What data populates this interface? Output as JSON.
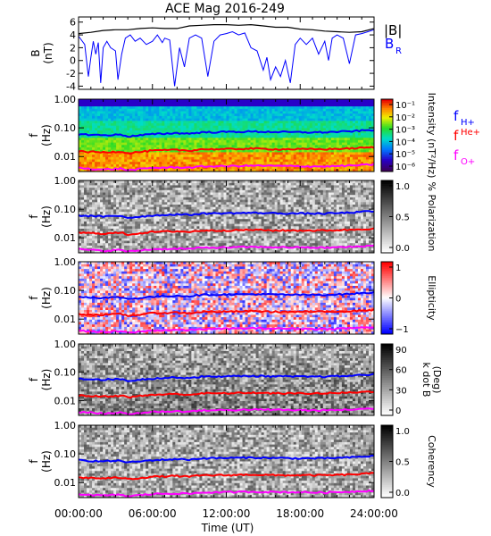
{
  "chart_data": {
    "title": "ACE Mag 2016-249",
    "xlabel": "Time (UT)",
    "x_ticks": [
      "00:00:00",
      "06:00:00",
      "12:00:00",
      "18:00:00",
      "24:00:00"
    ],
    "x_range_hours": [
      0,
      24
    ],
    "panels": [
      {
        "type": "line",
        "ylabel_top": "B",
        "ylabel_bottom": "(nT)",
        "ylim": [
          -4.5,
          6.8
        ],
        "y_ticks": [
          "6",
          "4",
          "2",
          "0",
          "-2",
          "-4"
        ],
        "y_tick_values": [
          6,
          4,
          2,
          0,
          -2,
          -4
        ],
        "series": [
          {
            "name": "|B|",
            "color": "#000000",
            "x": [
              0,
              1,
              2,
              3,
              4,
              5,
              6,
              7,
              8,
              9,
              10,
              11,
              12,
              13,
              14,
              15,
              16,
              17,
              18,
              19,
              20,
              21,
              22,
              23,
              24
            ],
            "y": [
              4.2,
              4.4,
              4.7,
              4.8,
              4.8,
              5.0,
              5.1,
              5.0,
              5.0,
              5.4,
              5.5,
              5.6,
              5.6,
              5.5,
              5.6,
              5.4,
              5.2,
              5.2,
              4.9,
              4.8,
              4.6,
              4.5,
              4.4,
              4.5,
              5.0
            ]
          },
          {
            "name": "B",
            "subscript": "R",
            "color": "#0000ff",
            "x": [
              0,
              0.5,
              0.8,
              1.0,
              1.2,
              1.4,
              1.6,
              1.8,
              2.0,
              2.3,
              2.6,
              3.0,
              3.2,
              3.5,
              3.8,
              4.2,
              4.6,
              5.0,
              5.5,
              6.0,
              6.4,
              6.8,
              7.0,
              7.4,
              7.8,
              8.2,
              8.6,
              9.0,
              9.5,
              10.0,
              10.5,
              11.0,
              11.5,
              12.0,
              12.5,
              13.0,
              13.5,
              14.0,
              14.5,
              15.0,
              15.3,
              15.6,
              16.0,
              16.4,
              16.8,
              17.2,
              17.6,
              18.0,
              18.5,
              19.0,
              19.5,
              20.0,
              20.3,
              20.6,
              21.0,
              21.5,
              22.0,
              22.5,
              23.0,
              23.5,
              24.0
            ],
            "y": [
              3.8,
              2.5,
              -2.5,
              0.5,
              3.0,
              1.0,
              2.8,
              -3.5,
              2.0,
              3.0,
              2.0,
              1.5,
              -3.0,
              1.0,
              3.5,
              4.0,
              3.0,
              3.5,
              2.5,
              3.0,
              4.0,
              2.8,
              3.5,
              3.2,
              -4.0,
              2.0,
              -1.0,
              3.5,
              4.0,
              3.5,
              -2.5,
              3.0,
              4.0,
              4.2,
              4.5,
              4.0,
              4.3,
              2.0,
              1.5,
              -1.5,
              0.5,
              -3.0,
              -1.0,
              -2.5,
              0.0,
              -3.5,
              2.5,
              3.5,
              2.5,
              3.5,
              1.0,
              3.0,
              0.0,
              3.5,
              4.0,
              3.5,
              -0.5,
              4.0,
              4.2,
              4.5,
              4.8
            ]
          }
        ],
        "legend": [
          {
            "label": "|B|",
            "color": "#000000"
          },
          {
            "label": "B",
            "subscript": "R",
            "color": "#0000ff"
          }
        ]
      },
      {
        "type": "heatmap",
        "ylabel_top": "f",
        "ylabel_bottom": "(Hz)",
        "y_scale": "log",
        "ylim": [
          0.003,
          1.0
        ],
        "y_ticks": [
          "1.00",
          "0.10",
          "0.01"
        ],
        "colorbar_label": "Intensity (nT²/Hz)",
        "colorbar_ticks": [
          "10⁻¹",
          "10⁻²",
          "10⁻³",
          "10⁻⁴",
          "10⁻⁵",
          "10⁻⁶"
        ],
        "colormap": "rainbow",
        "legend": [
          {
            "label": "f",
            "subscript": "H+",
            "color": "#0000ff"
          },
          {
            "label": "f",
            "subscript": "He+",
            "color": "#ff0000"
          },
          {
            "label": "f",
            "subscript": "O+",
            "color": "#ff00ff"
          }
        ]
      },
      {
        "type": "heatmap",
        "ylabel_top": "f",
        "ylabel_bottom": "(Hz)",
        "y_scale": "log",
        "ylim": [
          0.003,
          1.0
        ],
        "y_ticks": [
          "1.00",
          "0.10",
          "0.01"
        ],
        "colorbar_label": "% Polarization",
        "colorbar_ticks": [
          "1.0",
          "0.5",
          "0.0"
        ],
        "colormap": "gray"
      },
      {
        "type": "heatmap",
        "ylabel_top": "f",
        "ylabel_bottom": "(Hz)",
        "y_scale": "log",
        "ylim": [
          0.003,
          1.0
        ],
        "y_ticks": [
          "1.00",
          "0.10",
          "0.01"
        ],
        "colorbar_label": "Ellipticity",
        "colorbar_ticks": [
          "1",
          "0",
          "−1"
        ],
        "colormap": "bluewhitered"
      },
      {
        "type": "heatmap",
        "ylabel_top": "f",
        "ylabel_bottom": "(Hz)",
        "y_scale": "log",
        "ylim": [
          0.003,
          1.0
        ],
        "y_ticks": [
          "1.00",
          "0.10",
          "0.01"
        ],
        "colorbar_label_top": "k dot B",
        "colorbar_label_bottom": "(Deg)",
        "colorbar_ticks": [
          "90",
          "60",
          "30",
          "0"
        ],
        "colormap": "gray"
      },
      {
        "type": "heatmap",
        "ylabel_top": "f",
        "ylabel_bottom": "(Hz)",
        "y_scale": "log",
        "ylim": [
          0.003,
          1.0
        ],
        "y_ticks": [
          "1.00",
          "0.10",
          "0.01"
        ],
        "colorbar_label": "Coherency",
        "colorbar_ticks": [
          "1.0",
          "0.5",
          "0.0"
        ],
        "colormap": "gray"
      }
    ],
    "gyro_lines": {
      "x": [
        0,
        2,
        3.5,
        4,
        6,
        8,
        9,
        10,
        12,
        14,
        16,
        18,
        20,
        22,
        24
      ],
      "f_H+": [
        0.06,
        0.055,
        0.058,
        0.05,
        0.06,
        0.066,
        0.063,
        0.07,
        0.072,
        0.074,
        0.072,
        0.07,
        0.07,
        0.075,
        0.085
      ],
      "f_He+": [
        0.015,
        0.014,
        0.015,
        0.013,
        0.016,
        0.017,
        0.016,
        0.018,
        0.018,
        0.019,
        0.018,
        0.018,
        0.018,
        0.019,
        0.021
      ],
      "f_O+": [
        0.004,
        0.0035,
        0.0038,
        0.0033,
        0.004,
        0.0042,
        0.0041,
        0.0045,
        0.0046,
        0.0048,
        0.0047,
        0.0046,
        0.0045,
        0.0048,
        0.0053
      ]
    }
  }
}
